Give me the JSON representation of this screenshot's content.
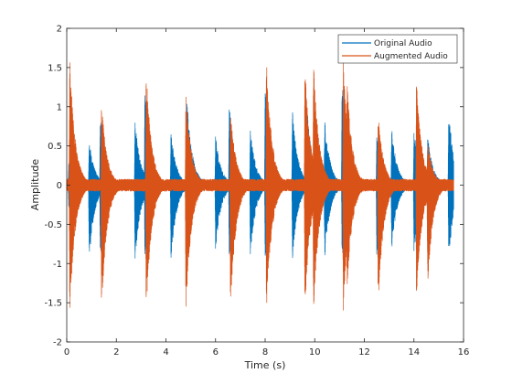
{
  "chart_data": {
    "type": "line",
    "xlabel": "Time (s)",
    "ylabel": "Amplitude",
    "xlim": [
      0,
      16
    ],
    "ylim": [
      -2,
      2
    ],
    "xticks": [
      0,
      2,
      4,
      6,
      8,
      10,
      12,
      14,
      16
    ],
    "yticks": [
      -2,
      -1.5,
      -1,
      -0.5,
      0,
      0.5,
      1,
      1.5,
      2
    ],
    "grid": false,
    "legend": "top-right",
    "signal_end": 15.6,
    "series": [
      {
        "name": "Original Audio",
        "color": "#0072BD",
        "noise_amplitude": 0.03,
        "bursts": [
          {
            "t": 0.08,
            "peak": 0.3,
            "trough": -0.3
          },
          {
            "t": 0.9,
            "peak": 0.6,
            "trough": -1.0
          },
          {
            "t": 1.35,
            "peak": 0.95,
            "trough": -1.0
          },
          {
            "t": 2.75,
            "peak": 0.85,
            "trough": -1.0
          },
          {
            "t": 3.15,
            "peak": 1.3,
            "trough": -1.0
          },
          {
            "t": 4.2,
            "peak": 0.7,
            "trough": -1.0
          },
          {
            "t": 4.85,
            "peak": 1.1,
            "trough": -1.0
          },
          {
            "t": 6.0,
            "peak": 0.65,
            "trough": -0.85
          },
          {
            "t": 6.55,
            "peak": 1.1,
            "trough": -1.0
          },
          {
            "t": 7.4,
            "peak": 0.75,
            "trough": -0.95
          },
          {
            "t": 8.0,
            "peak": 1.3,
            "trough": -1.0
          },
          {
            "t": 9.1,
            "peak": 1.0,
            "trough": -1.0
          },
          {
            "t": 9.65,
            "peak": 1.2,
            "trough": -1.0
          },
          {
            "t": 10.4,
            "peak": 0.85,
            "trough": -0.95
          },
          {
            "t": 11.1,
            "peak": 1.4,
            "trough": -1.0
          },
          {
            "t": 12.5,
            "peak": 0.65,
            "trough": -0.95
          },
          {
            "t": 13.1,
            "peak": 0.75,
            "trough": -0.85
          },
          {
            "t": 14.0,
            "peak": 0.75,
            "trough": -0.95
          },
          {
            "t": 14.55,
            "peak": 0.65,
            "trough": -0.9
          },
          {
            "t": 15.4,
            "peak": 1.0,
            "trough": -1.0
          }
        ]
      },
      {
        "name": "Augmented Audio",
        "color": "#D95319",
        "noise_amplitude": 0.08,
        "bursts": [
          {
            "t": 0.12,
            "peak": 1.65,
            "trough": -1.65
          },
          {
            "t": 1.4,
            "peak": 1.1,
            "trough": -1.65
          },
          {
            "t": 3.2,
            "peak": 1.5,
            "trough": -1.65
          },
          {
            "t": 4.8,
            "peak": 1.2,
            "trough": -1.65
          },
          {
            "t": 6.6,
            "peak": 1.0,
            "trough": -1.65
          },
          {
            "t": 8.05,
            "peak": 1.65,
            "trough": -1.65
          },
          {
            "t": 9.6,
            "peak": 1.55,
            "trough": -1.6
          },
          {
            "t": 9.95,
            "peak": 1.6,
            "trough": -1.65
          },
          {
            "t": 11.15,
            "peak": 1.65,
            "trough": -1.65
          },
          {
            "t": 11.3,
            "peak": 1.35,
            "trough": -1.35
          },
          {
            "t": 12.55,
            "peak": 0.95,
            "trough": -1.6
          },
          {
            "t": 14.1,
            "peak": 1.4,
            "trough": -1.5
          },
          {
            "t": 14.55,
            "peak": 0.55,
            "trough": -1.3
          }
        ]
      }
    ]
  }
}
